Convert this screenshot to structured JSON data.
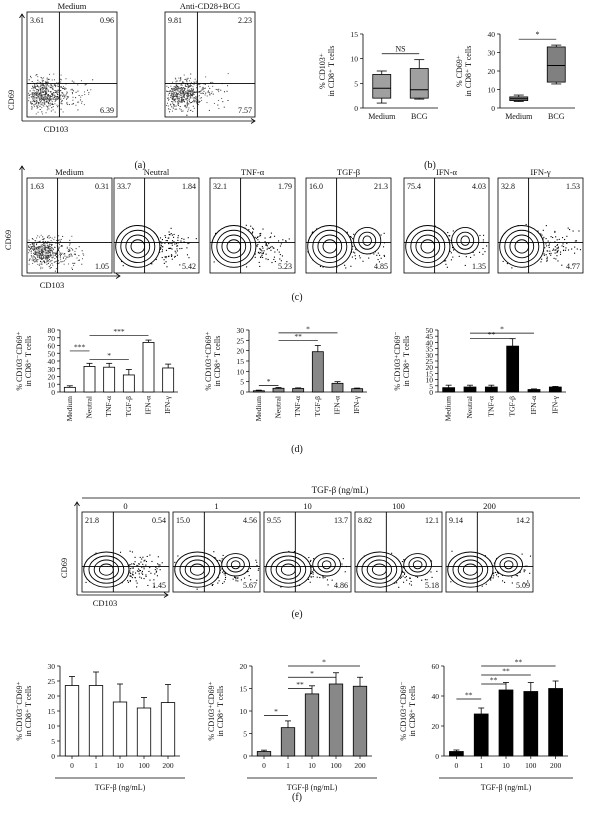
{
  "panel_labels": {
    "a": "(a)",
    "b": "(b)",
    "c": "(c)",
    "d": "(d)",
    "e": "(e)",
    "f": "(f)"
  },
  "panel_a": {
    "plots": [
      {
        "title": "Medium",
        "ul": "3.61",
        "ur": "0.96",
        "lr": "6.39"
      },
      {
        "title": "Anti-CD28+BCG",
        "ul": "9.81",
        "ur": "2.23",
        "lr": "7.57"
      }
    ],
    "ylabel": "CD69",
    "xlabel": "CD103"
  },
  "chart_data": [
    {
      "type": "box",
      "id": "b1",
      "categories": [
        "Medium",
        "BCG"
      ],
      "ylabel_1": "% CD103⁺",
      "ylabel_2": "in CD8⁺ T cells",
      "ylim": [
        0,
        15
      ],
      "ticks": [
        "0",
        "5",
        "10",
        "15"
      ],
      "boxes": [
        {
          "min": 1,
          "q1": 2,
          "median": 4,
          "q3": 6.8,
          "max": 7.5
        },
        {
          "min": 1.8,
          "q1": 2,
          "median": 3.7,
          "q3": 8,
          "max": 9.8
        }
      ],
      "sig": "NS",
      "color": "#a0a0a0"
    },
    {
      "type": "box",
      "id": "b2",
      "categories": [
        "Medium",
        "BCG"
      ],
      "ylabel_1": "% CD69⁺",
      "ylabel_2": "in CD8⁺ T cells",
      "ylim": [
        0,
        40
      ],
      "ticks": [
        "0",
        "10",
        "20",
        "30",
        "40"
      ],
      "boxes": [
        {
          "min": 3.5,
          "q1": 4,
          "median": 5,
          "q3": 6,
          "max": 7
        },
        {
          "min": 13,
          "q1": 14,
          "median": 23,
          "q3": 33,
          "max": 34
        }
      ],
      "sig": "*",
      "color": "#808080"
    },
    {
      "type": "bar",
      "id": "d1",
      "categories": [
        "Medium",
        "Neutral",
        "TNF-α",
        "TGF-β",
        "IFN-α",
        "IFN-γ"
      ],
      "values": [
        6,
        33,
        32,
        22,
        64,
        31
      ],
      "errors": [
        2,
        4,
        5,
        7,
        3,
        5
      ],
      "ylabel_1": "% CD103⁻CD69⁺",
      "ylabel_2": "in CD8⁺ T cells",
      "ylim": [
        0,
        80
      ],
      "ticks": [
        "0",
        "10",
        "20",
        "30",
        "40",
        "50",
        "60",
        "70",
        "80"
      ],
      "fill": "#ffffff",
      "sig": [
        {
          "from": 0,
          "to": 1,
          "label": "***",
          "at": 53
        },
        {
          "from": 1,
          "to": 3,
          "label": "*",
          "at": 42
        },
        {
          "from": 1,
          "to": 4,
          "label": "***",
          "at": 73
        }
      ]
    },
    {
      "type": "bar",
      "id": "d2",
      "categories": [
        "Medium",
        "Neutral",
        "TNF-α",
        "TGF-β",
        "IFN-α",
        "IFN-γ"
      ],
      "values": [
        0.6,
        1.8,
        1.7,
        19.5,
        4.2,
        1.6
      ],
      "errors": [
        0.3,
        0.4,
        0.3,
        3,
        0.8,
        0.3
      ],
      "ylabel_1": "% CD103⁺CD69⁺",
      "ylabel_2": "in CD8⁺ T cells",
      "ylim": [
        0,
        30
      ],
      "ticks": [
        "0",
        "5",
        "10",
        "15",
        "20",
        "25",
        "30"
      ],
      "fill": "#888888",
      "sig": [
        {
          "from": 0,
          "to": 1,
          "label": "*",
          "at": 3.2
        },
        {
          "from": 1,
          "to": 3,
          "label": "**",
          "at": 25
        },
        {
          "from": 1,
          "to": 4,
          "label": "*",
          "at": 28.6
        }
      ]
    },
    {
      "type": "bar",
      "id": "d3",
      "categories": [
        "Medium",
        "Neutral",
        "TNF-α",
        "TGF-β",
        "IFN-α",
        "IFN-γ"
      ],
      "values": [
        3.5,
        4,
        4,
        37,
        2,
        4
      ],
      "errors": [
        2,
        1.5,
        1.5,
        6,
        0.5,
        0.5
      ],
      "ylabel_1": "% CD103⁺CD69⁻",
      "ylabel_2": "in CD8⁺ T cells",
      "ylim": [
        0,
        50
      ],
      "ticks": [
        "0",
        "5",
        "10",
        "15",
        "20",
        "25",
        "30",
        "35",
        "40",
        "45",
        "50"
      ],
      "fill": "#000000",
      "sig": [
        {
          "from": 1,
          "to": 3,
          "label": "**",
          "at": 43
        },
        {
          "from": 1,
          "to": 4,
          "label": "*",
          "at": 47.5
        }
      ]
    },
    {
      "type": "bar",
      "id": "f1",
      "categories": [
        "0",
        "1",
        "10",
        "100",
        "200"
      ],
      "values": [
        23.5,
        23.5,
        18,
        16,
        17.8
      ],
      "errors": [
        3,
        4.5,
        6,
        3.5,
        6
      ],
      "xlabel": "TGF-β (ng/mL)",
      "ylabel_1": "% CD103⁻CD69⁺",
      "ylabel_2": "in CD8⁺ T cells",
      "ylim": [
        0,
        30
      ],
      "ticks": [
        "0",
        "5",
        "10",
        "15",
        "20",
        "25",
        "30"
      ],
      "fill": "#ffffff",
      "sig": []
    },
    {
      "type": "bar",
      "id": "f2",
      "categories": [
        "0",
        "1",
        "10",
        "100",
        "200"
      ],
      "values": [
        1,
        6.3,
        13.8,
        16,
        15.5
      ],
      "errors": [
        0.3,
        1.5,
        1.8,
        2.5,
        2
      ],
      "xlabel": "TGF-β (ng/mL)",
      "ylabel_1": "% CD103⁺CD69⁺",
      "ylabel_2": "in CD8⁺ T cells",
      "ylim": [
        0,
        20
      ],
      "ticks": [
        "0",
        "5",
        "10",
        "15",
        "20"
      ],
      "fill": "#888888",
      "sig": [
        {
          "from": 0,
          "to": 1,
          "label": "*",
          "at": 9
        },
        {
          "from": 1,
          "to": 2,
          "label": "**",
          "at": 15
        },
        {
          "from": 1,
          "to": 3,
          "label": "*",
          "at": 17.5
        },
        {
          "from": 1,
          "to": 4,
          "label": "*",
          "at": 20
        }
      ]
    },
    {
      "type": "bar",
      "id": "f3",
      "categories": [
        "0",
        "1",
        "10",
        "100",
        "200"
      ],
      "values": [
        3,
        28,
        44,
        43,
        45
      ],
      "errors": [
        1,
        4,
        5,
        6,
        5
      ],
      "xlabel": "TGF-β (ng/mL)",
      "ylabel_1": "% CD103⁺CD69⁻",
      "ylabel_2": "in CD8⁺ T cells",
      "ylim": [
        0,
        60
      ],
      "ticks": [
        "0",
        "20",
        "40",
        "60"
      ],
      "fill": "#000000",
      "sig": [
        {
          "from": 0,
          "to": 1,
          "label": "**",
          "at": 38
        },
        {
          "from": 1,
          "to": 2,
          "label": "**",
          "at": 48
        },
        {
          "from": 1,
          "to": 3,
          "label": "**",
          "at": 54
        },
        {
          "from": 1,
          "to": 4,
          "label": "**",
          "at": 60
        }
      ]
    }
  ],
  "panel_c": {
    "plots": [
      {
        "title": "Medium",
        "ul": "1.63",
        "ur": "0.31",
        "lr": "1.05"
      },
      {
        "title": "Neutral",
        "ul": "33.7",
        "ur": "1.84",
        "lr": "5.42"
      },
      {
        "title": "TNF-α",
        "ul": "32.1",
        "ur": "1.79",
        "lr": "5.23"
      },
      {
        "title": "TGF-β",
        "ul": "16.0",
        "ur": "21.3",
        "lr": "4.85"
      },
      {
        "title": "IFN-α",
        "ul": "75.4",
        "ur": "4.03",
        "lr": "1.35"
      },
      {
        "title": "IFN-γ",
        "ul": "32.8",
        "ur": "1.53",
        "lr": "4.77"
      }
    ],
    "ylabel": "CD69",
    "xlabel": "CD103"
  },
  "panel_e": {
    "header": "TGF-β (ng/mL)",
    "plots": [
      {
        "title": "0",
        "ul": "21.8",
        "ur": "0.54",
        "lr": "1.45"
      },
      {
        "title": "1",
        "ul": "15.0",
        "ur": "4.56",
        "lr": "5.67"
      },
      {
        "title": "10",
        "ul": "9.55",
        "ur": "13.7",
        "lr": "4.86"
      },
      {
        "title": "100",
        "ul": "8.82",
        "ur": "12.1",
        "lr": "5.18"
      },
      {
        "title": "200",
        "ul": "9.14",
        "ur": "14.2",
        "lr": "5.09"
      }
    ],
    "ylabel": "CD69",
    "xlabel": "CD103"
  }
}
